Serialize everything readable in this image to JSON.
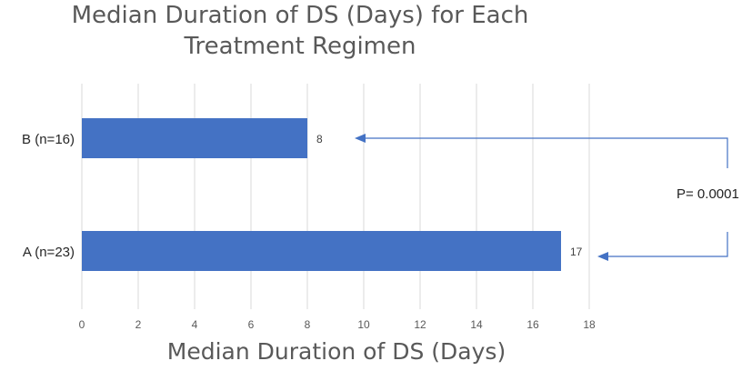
{
  "chart_data": {
    "type": "bar",
    "orientation": "horizontal",
    "title_lines": [
      "Median Duration of DS (Days) for Each",
      "Treatment Regimen"
    ],
    "xlabel": "Median Duration of DS (Days)",
    "ylabel": "",
    "categories": [
      "B (n=16)",
      "A (n=23)"
    ],
    "values": [
      8,
      17
    ],
    "data_labels": [
      "8",
      "17"
    ],
    "xlim": [
      0,
      18
    ],
    "xticks": [
      0,
      2,
      4,
      6,
      8,
      10,
      12,
      14,
      16,
      18
    ],
    "grid": "vertical",
    "bar_color": "#4472C4",
    "annotation": {
      "text": "P= 0.0001",
      "connects": [
        "B (n=16)",
        "A (n=23)"
      ],
      "color": "#4472C4"
    }
  }
}
